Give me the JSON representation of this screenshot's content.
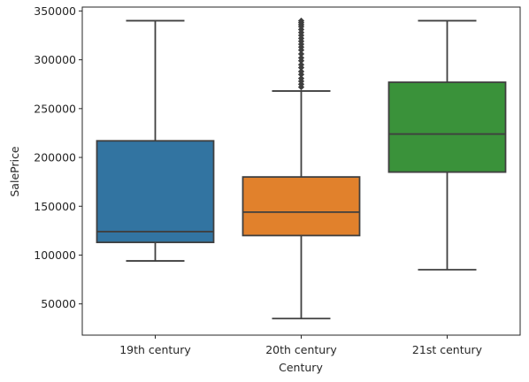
{
  "chart_data": {
    "type": "box",
    "title": "",
    "xlabel": "Century",
    "ylabel": "SalePrice",
    "ylim": [
      18000,
      354000
    ],
    "yticks": [
      50000,
      100000,
      150000,
      200000,
      250000,
      300000,
      350000
    ],
    "grid": false,
    "categories": [
      "19th century",
      "20th century",
      "21st century"
    ],
    "colors": [
      "#3274a1",
      "#e1812c",
      "#3a923a"
    ],
    "boxes": [
      {
        "category": "19th century",
        "whisker_low": 94000,
        "q1": 113000,
        "median": 124000,
        "q3": 217000,
        "whisker_high": 340000,
        "outliers": []
      },
      {
        "category": "20th century",
        "whisker_low": 35000,
        "q1": 120000,
        "median": 144000,
        "q3": 180000,
        "whisker_high": 268000,
        "outliers": [
          272000,
          275000,
          278000,
          281000,
          285000,
          288000,
          292000,
          295000,
          299000,
          302000,
          306000,
          310000,
          313000,
          316000,
          319000,
          322000,
          325000,
          328000,
          331000,
          334000,
          336000,
          338000,
          340000
        ]
      },
      {
        "category": "21st century",
        "whisker_low": 85000,
        "q1": 185000,
        "median": 224000,
        "q3": 277000,
        "whisker_high": 340000,
        "outliers": []
      }
    ]
  }
}
